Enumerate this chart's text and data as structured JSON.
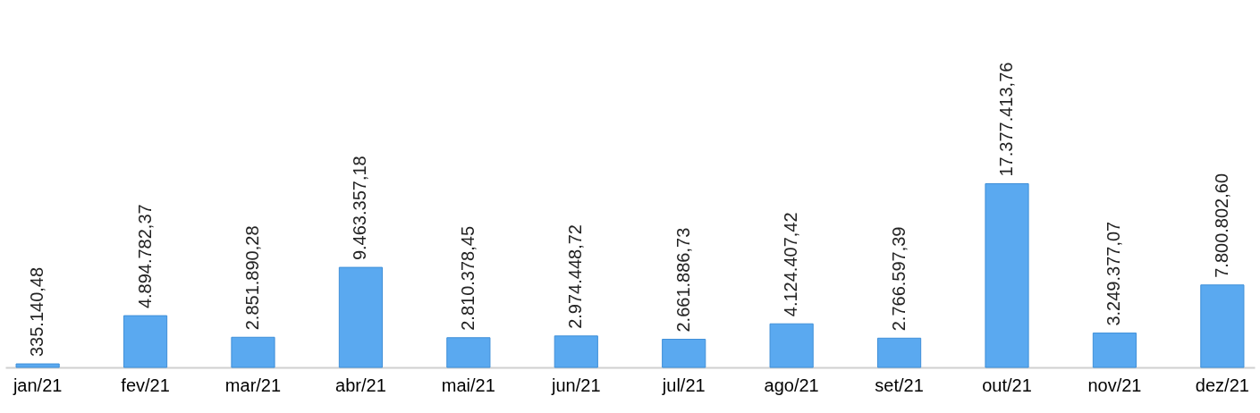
{
  "chart_data": {
    "type": "bar",
    "categories": [
      "jan/21",
      "fev/21",
      "mar/21",
      "abr/21",
      "mai/21",
      "jun/21",
      "jul/21",
      "ago/21",
      "set/21",
      "out/21",
      "nov/21",
      "dez/21"
    ],
    "values": [
      335140.48,
      4894782.37,
      2851890.28,
      9463357.18,
      2810378.45,
      2974448.72,
      2661886.73,
      4124407.42,
      2766597.39,
      17377413.76,
      3249377.07,
      7800802.6
    ],
    "value_labels": [
      "335.140,48",
      "4.894.782,37",
      "2.851.890,28",
      "9.463.357,18",
      "2.810.378,45",
      "2.974.448,72",
      "2.661.886,73",
      "4.124.407,42",
      "2.766.597,39",
      "17.377.413,76",
      "3.249.377,07",
      "7.800.802,60"
    ],
    "color": "#5aa9f0"
  }
}
